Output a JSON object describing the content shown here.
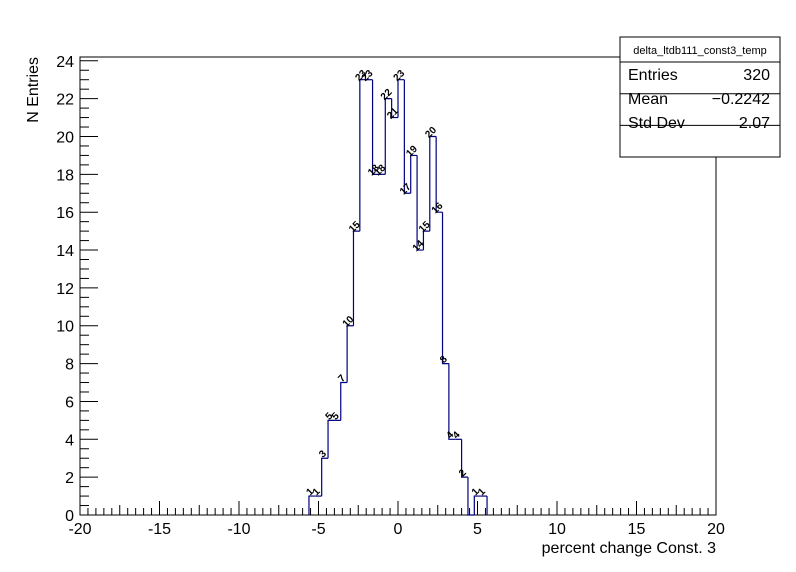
{
  "chart_data": {
    "type": "histogram",
    "xlabel": "percent change Const. 3",
    "ylabel": "N Entries",
    "bins": [
      -5.6,
      -5.2,
      -4.8,
      -4.4,
      -4.0,
      -3.6,
      -3.2,
      -2.8,
      -2.4,
      -2.0,
      -1.6,
      -1.2,
      -0.8,
      -0.4,
      0,
      0.4,
      0.8,
      1.2,
      1.6,
      2.0,
      2.4,
      2.8,
      3.2,
      3.6,
      4.0,
      4.4,
      4.8,
      5.2,
      5.6
    ],
    "values": [
      1,
      1,
      3,
      5,
      5,
      7,
      10,
      15,
      23,
      23,
      18,
      18,
      22,
      21,
      23,
      17,
      19,
      14,
      15,
      20,
      16,
      8,
      4,
      4,
      2,
      0,
      1,
      1
    ],
    "color": "#000080",
    "xlim": [
      -20,
      20
    ],
    "xticks": [
      -20,
      -15,
      -10,
      -5,
      0,
      5,
      10,
      15,
      20
    ],
    "ylim": [
      0,
      24.2
    ],
    "yticks": [
      0,
      2,
      4,
      6,
      8,
      10,
      12,
      14,
      16,
      18,
      20,
      22,
      24
    ],
    "stats": {
      "title": "delta_ltdb111_const3_temp",
      "rows": [
        [
          "Entries",
          "320"
        ],
        [
          "Mean",
          "−0.2242"
        ],
        [
          "Std Dev",
          "2.07"
        ]
      ]
    }
  }
}
